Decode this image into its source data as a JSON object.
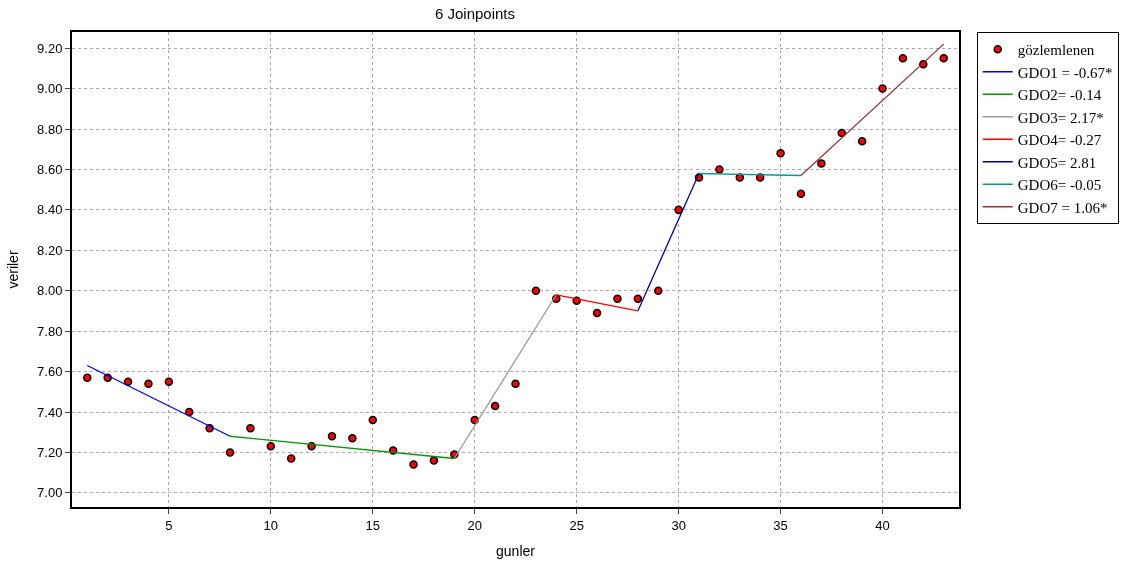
{
  "chart_data": {
    "type": "line",
    "title": "6 Joinpoints",
    "xlabel": "gunler",
    "ylabel": "veriler",
    "xlim": [
      0.25,
      43.75
    ],
    "xticks": [
      5,
      10,
      15,
      20,
      25,
      30,
      35,
      40
    ],
    "ylim": [
      6.93,
      9.28
    ],
    "yticks": [
      {
        "value": 7.0,
        "label": "7.00"
      },
      {
        "value": 7.2,
        "label": "7.20"
      },
      {
        "value": 7.4,
        "label": "7.40"
      },
      {
        "value": 7.6,
        "label": "7.60"
      },
      {
        "value": 7.8,
        "label": "7.80"
      },
      {
        "value": 8.0,
        "label": "8.00"
      },
      {
        "value": 8.2,
        "label": "8.20"
      },
      {
        "value": 8.4,
        "label": "8.40"
      },
      {
        "value": 8.6,
        "label": "8.60"
      },
      {
        "value": 8.8,
        "label": "8.80"
      },
      {
        "value": 9.0,
        "label": "9.00"
      },
      {
        "value": 9.2,
        "label": "9.20"
      }
    ],
    "grid": true,
    "legend": "top right",
    "series": [
      {
        "name": "gözlemlenen",
        "type": "scatter",
        "marker": "circle",
        "color": "#ff0000",
        "x": [
          1,
          2,
          3,
          4,
          5,
          6,
          7,
          8,
          9,
          10,
          11,
          12,
          13,
          14,
          15,
          16,
          17,
          18,
          19,
          20,
          21,
          22,
          23,
          24,
          25,
          26,
          27,
          28,
          29,
          30,
          31,
          32,
          33,
          34,
          35,
          36,
          37,
          38,
          39,
          40,
          41,
          42,
          43
        ],
        "values": [
          7.57,
          7.57,
          7.55,
          7.54,
          7.55,
          7.4,
          7.32,
          7.2,
          7.32,
          7.23,
          7.17,
          7.23,
          7.28,
          7.27,
          7.36,
          7.21,
          7.14,
          7.16,
          7.19,
          7.36,
          7.43,
          7.54,
          8.0,
          7.96,
          7.95,
          7.89,
          7.96,
          7.96,
          8.0,
          8.4,
          8.56,
          8.6,
          8.56,
          8.56,
          8.68,
          8.48,
          8.63,
          8.78,
          8.74,
          9.0,
          9.15,
          9.12,
          9.15
        ]
      },
      {
        "name": "GDO1 = -0.67*",
        "color": "#0000ff",
        "x": [
          1,
          8
        ],
        "values": [
          7.63,
          7.28
        ]
      },
      {
        "name": "GDO2= -0.14",
        "color": "#009900",
        "x": [
          8,
          19
        ],
        "values": [
          7.28,
          7.17
        ]
      },
      {
        "name": "GDO3= 2.17*",
        "color": "#999999",
        "x": [
          19,
          24
        ],
        "values": [
          7.17,
          7.98
        ]
      },
      {
        "name": "GDO4= -0.27",
        "color": "#ff0000",
        "x": [
          24,
          28
        ],
        "values": [
          7.98,
          7.9
        ]
      },
      {
        "name": "GDO5= 2.81",
        "color": "#000099",
        "x": [
          28,
          31
        ],
        "values": [
          7.9,
          8.58
        ]
      },
      {
        "name": "GDO6= -0.05",
        "color": "#009999",
        "x": [
          31,
          36
        ],
        "values": [
          8.58,
          8.57
        ]
      },
      {
        "name": "GDO7 = 1.06*",
        "color": "#993333",
        "x": [
          36,
          43
        ],
        "values": [
          8.57,
          9.22
        ]
      }
    ]
  }
}
